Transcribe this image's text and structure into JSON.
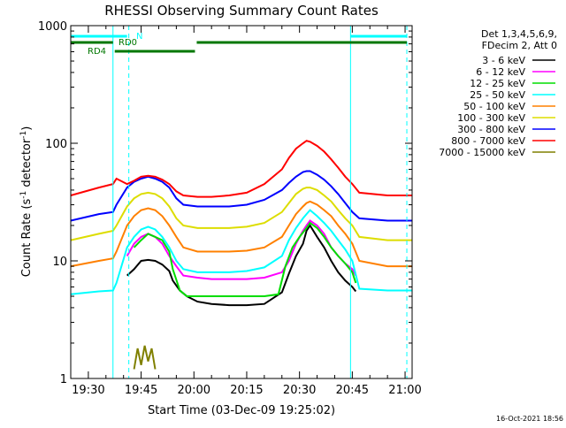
{
  "chart_data": {
    "type": "line",
    "title": "RHESSI Observing Summary Count Rates",
    "xlabel": "Start Time (03-Dec-09 19:25:02)",
    "ylabel_main": "Count Rate (s",
    "ylabel_sup1": "-1",
    "ylabel_mid": " detector",
    "ylabel_sup2": "-1",
    "ylabel_end": ")",
    "yscale": "log",
    "xlim_minutes": [
      0,
      97
    ],
    "ylim": [
      1,
      1000
    ],
    "x_ticks": [
      {
        "minute": 5,
        "label": "19:30"
      },
      {
        "minute": 20,
        "label": "19:45"
      },
      {
        "minute": 35,
        "label": "20:00"
      },
      {
        "minute": 50,
        "label": "20:15"
      },
      {
        "minute": 65,
        "label": "20:30"
      },
      {
        "minute": 80,
        "label": "20:45"
      },
      {
        "minute": 95,
        "label": "21:00"
      }
    ],
    "y_ticks": [
      {
        "value": 1,
        "label": "1"
      },
      {
        "value": 10,
        "label": "10"
      },
      {
        "value": 100,
        "label": "100"
      },
      {
        "value": 1000,
        "label": "1000"
      }
    ],
    "legend_header": [
      "Det 1,3,4,5,6,9,",
      "FDecim 2, Att 0"
    ],
    "legend_placement": "right",
    "series": [
      {
        "name": "3 - 6 keV",
        "color": "#000000",
        "x": [
          16,
          18,
          20,
          22,
          24,
          26,
          28,
          29,
          31,
          33,
          36,
          40,
          45,
          50,
          55,
          60,
          62,
          64,
          66,
          67,
          68,
          70,
          72,
          74,
          76,
          78,
          80,
          81
        ],
        "y": [
          7.5,
          8.5,
          10,
          10.2,
          10,
          9.3,
          8.2,
          6.8,
          5.6,
          5.0,
          4.5,
          4.3,
          4.2,
          4.2,
          4.3,
          5.4,
          7.8,
          11,
          14,
          18,
          20,
          16,
          13,
          10,
          8,
          6.8,
          6.0,
          5.5
        ]
      },
      {
        "name": "6 - 12 keV",
        "color": "#ff00ff",
        "x": [
          16,
          18,
          20,
          22,
          24,
          26,
          28,
          30,
          32,
          36,
          40,
          45,
          50,
          55,
          60,
          62,
          64,
          66,
          67,
          68,
          70,
          72,
          74,
          76,
          78,
          80,
          81
        ],
        "y": [
          11,
          14,
          16,
          17,
          16,
          14,
          11,
          9,
          7.5,
          7.2,
          7.0,
          7.0,
          7.0,
          7.2,
          8.0,
          10,
          14,
          18,
          20,
          22,
          20,
          17,
          13,
          11,
          9.5,
          8.5,
          7.5
        ]
      },
      {
        "name": "12 - 25 keV",
        "color": "#00dd00",
        "x": [
          18,
          20,
          22,
          24,
          26,
          28,
          29,
          31,
          33,
          36,
          40,
          45,
          50,
          55,
          59,
          61,
          63,
          65,
          67,
          68,
          70,
          72,
          74,
          76,
          78,
          80,
          81
        ],
        "y": [
          13,
          15,
          17,
          16,
          15,
          12,
          8.5,
          5.6,
          5.0,
          5.0,
          5.0,
          5.0,
          5.0,
          5.0,
          5.2,
          9,
          13,
          16,
          19,
          21,
          19,
          16,
          13,
          11,
          9.5,
          8,
          6.5
        ]
      },
      {
        "name": "25 - 50 keV",
        "color": "#00ffff",
        "x": [
          0,
          8,
          12,
          13,
          16,
          18,
          20,
          22,
          24,
          26,
          28,
          30,
          32,
          36,
          40,
          45,
          50,
          55,
          60,
          62,
          64,
          66,
          67,
          68,
          70,
          72,
          74,
          76,
          78,
          80,
          82,
          90,
          97
        ],
        "y": [
          5.2,
          5.5,
          5.6,
          6.5,
          13,
          16,
          18.5,
          19.5,
          18.5,
          16,
          13,
          10,
          8.5,
          8.0,
          8.0,
          8.0,
          8.2,
          8.8,
          11,
          15,
          19,
          23,
          25,
          27,
          24,
          21,
          18,
          15,
          12.5,
          10,
          5.8,
          5.6,
          5.6
        ]
      },
      {
        "name": "50 - 100 keV",
        "color": "#ff8000",
        "x": [
          0,
          8,
          12,
          13,
          16,
          18,
          20,
          22,
          24,
          26,
          28,
          30,
          32,
          36,
          40,
          45,
          50,
          55,
          60,
          62,
          64,
          66,
          67,
          68,
          70,
          72,
          74,
          76,
          78,
          80,
          82,
          90,
          97
        ],
        "y": [
          9,
          10,
          10.5,
          12,
          20,
          24,
          27,
          28,
          27,
          24,
          20,
          16,
          13,
          12,
          12,
          12,
          12.2,
          13,
          16,
          20,
          25,
          29,
          31,
          32,
          30,
          27,
          24,
          20,
          17,
          14,
          10,
          9,
          9
        ]
      },
      {
        "name": "100 - 300 keV",
        "color": "#dddd00",
        "x": [
          0,
          8,
          12,
          13,
          16,
          18,
          20,
          22,
          24,
          26,
          28,
          30,
          32,
          36,
          40,
          45,
          50,
          55,
          60,
          62,
          64,
          66,
          67,
          68,
          70,
          72,
          74,
          76,
          78,
          80,
          82,
          90,
          97
        ],
        "y": [
          15,
          17,
          18,
          20,
          29,
          34,
          37,
          38,
          37,
          34,
          29,
          23,
          20,
          19,
          19,
          19,
          19.5,
          21,
          26,
          31,
          37,
          41,
          42,
          42,
          40,
          36,
          32,
          27,
          23,
          20,
          16,
          15,
          15
        ]
      },
      {
        "name": "300 - 800 keV",
        "color": "#0000ff",
        "x": [
          0,
          8,
          12,
          13,
          16,
          18,
          20,
          22,
          24,
          26,
          28,
          30,
          32,
          36,
          40,
          45,
          50,
          55,
          60,
          62,
          64,
          66,
          67,
          68,
          70,
          72,
          74,
          76,
          78,
          80,
          82,
          90,
          97
        ],
        "y": [
          22,
          25,
          26,
          30,
          42,
          47,
          50,
          52,
          50,
          47,
          42,
          34,
          30,
          29,
          29,
          29,
          30,
          33,
          40,
          46,
          52,
          57,
          58,
          58,
          54,
          49,
          43,
          37,
          31,
          26,
          23,
          22,
          22
        ]
      },
      {
        "name": "800 - 7000 keV",
        "color": "#ff0000",
        "x": [
          0,
          8,
          12,
          13,
          16,
          18,
          20,
          22,
          24,
          26,
          28,
          30,
          32,
          36,
          40,
          45,
          50,
          55,
          60,
          62,
          64,
          66,
          67,
          68,
          70,
          72,
          74,
          76,
          78,
          80,
          82,
          90,
          97
        ],
        "y": [
          36,
          42,
          45,
          50,
          45,
          48,
          52,
          53,
          52,
          49,
          45,
          39,
          36,
          35,
          35,
          36,
          38,
          45,
          60,
          75,
          90,
          100,
          105,
          103,
          95,
          85,
          73,
          62,
          52,
          45,
          38,
          36,
          36
        ]
      },
      {
        "name": "7000 - 15000 keV",
        "color": "#808000",
        "x": [
          18,
          19,
          20,
          21,
          22,
          23,
          24
        ],
        "y": [
          1.2,
          1.8,
          1.3,
          1.9,
          1.4,
          1.8,
          1.2
        ]
      }
    ],
    "cyan_vlines_solid": [
      12,
      79.5
    ],
    "cyan_vlines_dashed": [
      16.5,
      95.5
    ],
    "bars": {
      "N": {
        "label": "N",
        "segments": [
          [
            0,
            16
          ]
        ],
        "color": "#00ffff"
      },
      "RD0": {
        "label": "RD0",
        "segments": [
          [
            0,
            12
          ],
          [
            35.8,
            95.5
          ]
        ],
        "color": "#007700"
      },
      "RD4": {
        "label": "RD4",
        "segments": [
          [
            12.5,
            35.3
          ]
        ],
        "color": "#007700"
      },
      "CYAN2": {
        "label": "",
        "segments": [
          [
            79.5,
            95.5
          ]
        ],
        "color": "#00ffff"
      }
    },
    "footer": "16-Oct-2021 18:56"
  }
}
